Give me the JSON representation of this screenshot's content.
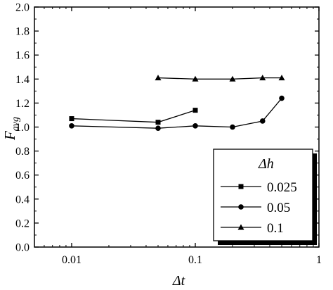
{
  "chart_data": {
    "type": "line",
    "xscale": "log",
    "xlim": [
      0.005,
      1
    ],
    "ylim": [
      0.0,
      2.0
    ],
    "xticks": [
      {
        "value": 0.01,
        "label": "0.01"
      },
      {
        "value": 0.1,
        "label": "0.1"
      },
      {
        "value": 1,
        "label": "1"
      }
    ],
    "yticks": [
      {
        "value": 0.0,
        "label": "0.0"
      },
      {
        "value": 0.2,
        "label": "0.2"
      },
      {
        "value": 0.4,
        "label": "0.4"
      },
      {
        "value": 0.6,
        "label": "0.6"
      },
      {
        "value": 0.8,
        "label": "0.8"
      },
      {
        "value": 1.0,
        "label": "1.0"
      },
      {
        "value": 1.2,
        "label": "1.2"
      },
      {
        "value": 1.4,
        "label": "1.4"
      },
      {
        "value": 1.6,
        "label": "1.6"
      },
      {
        "value": 1.8,
        "label": "1.8"
      },
      {
        "value": 2.0,
        "label": "2.0"
      }
    ],
    "xlabel": "Δt",
    "ylabel_main": "F",
    "ylabel_sub": "avg",
    "legend": {
      "title": "Δh",
      "placement": "bottom-right"
    },
    "series": [
      {
        "name": "0.025",
        "marker": "square",
        "points": [
          {
            "x": 0.01,
            "y": 1.07
          },
          {
            "x": 0.05,
            "y": 1.04
          },
          {
            "x": 0.1,
            "y": 1.14
          }
        ]
      },
      {
        "name": "0.05",
        "marker": "circle",
        "points": [
          {
            "x": 0.01,
            "y": 1.01
          },
          {
            "x": 0.05,
            "y": 0.99
          },
          {
            "x": 0.1,
            "y": 1.01
          },
          {
            "x": 0.2,
            "y": 1.0
          },
          {
            "x": 0.35,
            "y": 1.05
          },
          {
            "x": 0.5,
            "y": 1.24
          }
        ]
      },
      {
        "name": "0.1",
        "marker": "triangle",
        "points": [
          {
            "x": 0.05,
            "y": 1.41
          },
          {
            "x": 0.1,
            "y": 1.4
          },
          {
            "x": 0.2,
            "y": 1.4
          },
          {
            "x": 0.35,
            "y": 1.41
          },
          {
            "x": 0.5,
            "y": 1.41
          }
        ]
      }
    ]
  }
}
